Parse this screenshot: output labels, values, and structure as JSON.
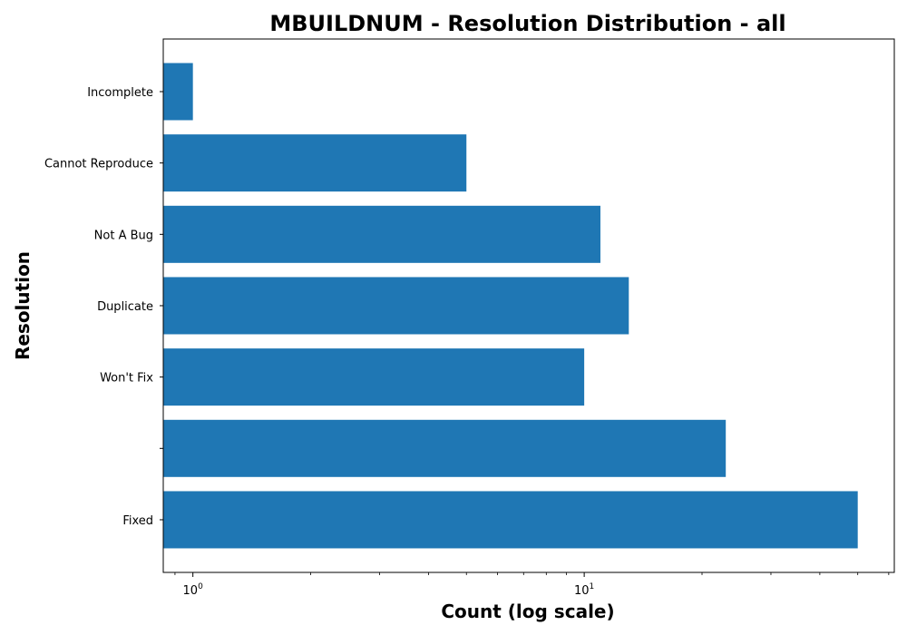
{
  "chart_data": {
    "type": "bar",
    "orientation": "horizontal",
    "title": "MBUILDNUM - Resolution Distribution - all",
    "xlabel": "Count (log scale)",
    "ylabel": "Resolution",
    "x_scale": "log",
    "xlim": [
      0.84,
      62
    ],
    "x_major_ticks": [
      {
        "value": 1,
        "base": "10",
        "exponent": "0"
      },
      {
        "value": 10,
        "base": "10",
        "exponent": "1"
      }
    ],
    "categories": [
      "Incomplete",
      "Cannot Reproduce",
      "Not A Bug",
      "Duplicate",
      "Won't Fix",
      "",
      "Fixed"
    ],
    "values": [
      1,
      5,
      11,
      13,
      10,
      23,
      50
    ],
    "bar_color": "#1f77b4",
    "grid": false,
    "legend": "none"
  }
}
